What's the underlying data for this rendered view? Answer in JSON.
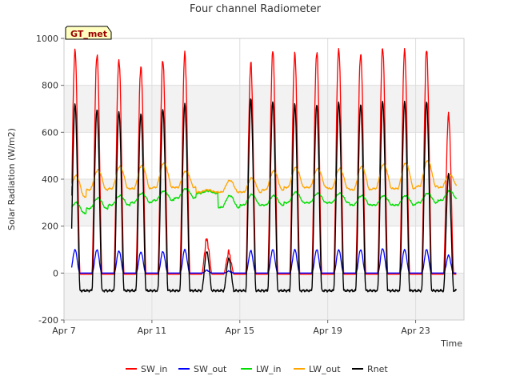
{
  "chart_data": {
    "type": "line",
    "title": "Four channel Radiometer",
    "xlabel": "Time",
    "ylabel": "Solar Radiation (W/m2)",
    "station_label": "GT_met",
    "x_unit": "days since Apr 7",
    "xlim": [
      0,
      18.2
    ],
    "ylim": [
      -200,
      1000
    ],
    "yticks": [
      -200,
      0,
      200,
      400,
      600,
      800,
      1000
    ],
    "xticks": [
      {
        "value": 0,
        "label": "Apr 7"
      },
      {
        "value": 4,
        "label": "Apr 11"
      },
      {
        "value": 8,
        "label": "Apr 15"
      },
      {
        "value": 12,
        "label": "Apr 19"
      },
      {
        "value": 16,
        "label": "Apr 23"
      }
    ],
    "grid": true,
    "legend_position": "bottom",
    "days": [
      0,
      1,
      2,
      3,
      4,
      5,
      6,
      7,
      8,
      9,
      10,
      11,
      12,
      13,
      14,
      15,
      16,
      17
    ],
    "series": [
      {
        "name": "SW_in",
        "color": "#ff0000",
        "key": "sw_in",
        "daily_peak": [
          950,
          935,
          915,
          885,
          910,
          935,
          140,
          85,
          890,
          945,
          935,
          945,
          960,
          940,
          965,
          950,
          950,
          670
        ],
        "night_value": -5
      },
      {
        "name": "SW_out",
        "color": "#0000ff",
        "key": "sw_out",
        "daily_peak": [
          100,
          100,
          95,
          90,
          92,
          100,
          12,
          8,
          95,
          100,
          100,
          100,
          100,
          100,
          105,
          100,
          100,
          75
        ],
        "night_value": 0
      },
      {
        "name": "LW_in",
        "color": "#00dd00",
        "key": "lw_in",
        "daily_min": [
          255,
          275,
          290,
          300,
          310,
          320,
          340,
          280,
          290,
          290,
          300,
          300,
          300,
          290,
          290,
          290,
          300,
          310
        ],
        "daily_max": [
          300,
          320,
          330,
          340,
          350,
          360,
          350,
          330,
          335,
          330,
          345,
          340,
          340,
          330,
          330,
          330,
          340,
          350
        ]
      },
      {
        "name": "LW_out",
        "color": "#ffa500",
        "key": "lw_out",
        "daily_min": [
          325,
          355,
          360,
          360,
          365,
          365,
          345,
          345,
          345,
          355,
          365,
          365,
          360,
          355,
          360,
          360,
          370,
          365
        ],
        "daily_max": [
          415,
          440,
          455,
          460,
          470,
          435,
          355,
          395,
          405,
          435,
          450,
          445,
          445,
          455,
          465,
          470,
          480,
          420
        ]
      },
      {
        "name": "Rnet",
        "color": "#000000",
        "key": "rnet",
        "daily_peak": [
          720,
          700,
          690,
          680,
          700,
          720,
          90,
          60,
          740,
          730,
          720,
          720,
          730,
          720,
          735,
          730,
          730,
          420
        ],
        "night_value": -75
      }
    ]
  }
}
